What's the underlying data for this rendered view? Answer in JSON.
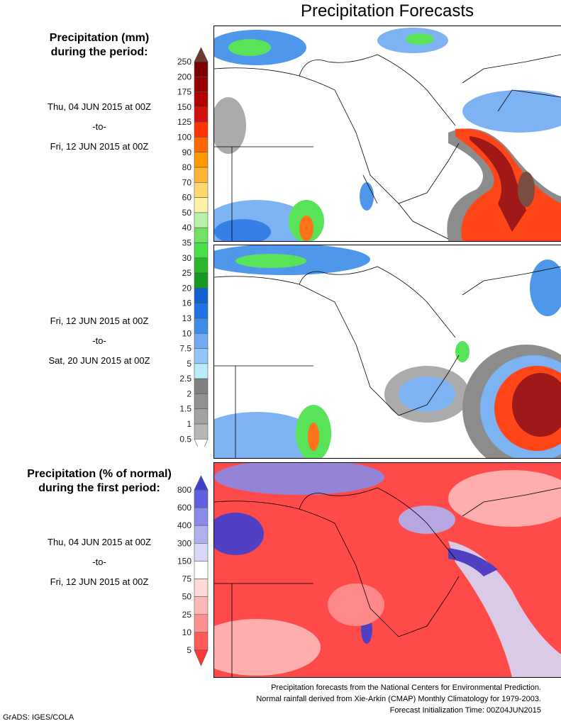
{
  "title": "Precipitation Forecasts",
  "panel1": {
    "header_line1": "Precipitation (mm)",
    "header_line2": "during the period:",
    "start": "Thu, 04 JUN 2015 at 00Z",
    "to": "-to-",
    "end": "Fri, 12 JUN 2015 at 00Z"
  },
  "panel2": {
    "start": "Fri, 12 JUN 2015 at 00Z",
    "to": "-to-",
    "end": "Sat, 20 JUN 2015 at 00Z"
  },
  "panel3": {
    "header_line1": "Precipitation (% of normal)",
    "header_line2": "during the first period:",
    "start": "Thu, 04 JUN 2015 at 00Z",
    "to": "-to-",
    "end": "Fri, 12 JUN 2015 at 00Z"
  },
  "precip_scale": {
    "labels": [
      "250",
      "200",
      "175",
      "150",
      "125",
      "100",
      "90",
      "80",
      "70",
      "60",
      "50",
      "40",
      "35",
      "30",
      "25",
      "20",
      "16",
      "13",
      "10",
      "7.5",
      "5",
      "2.5",
      "2",
      "1.5",
      "1",
      "0.5"
    ],
    "top_color": "#6b3a2c",
    "colors": [
      "#7a0000",
      "#960000",
      "#b00000",
      "#d21010",
      "#ff3300",
      "#ff6600",
      "#ff9900",
      "#ffb334",
      "#ffd96e",
      "#fff2a6",
      "#b8f2a8",
      "#72e262",
      "#48e048",
      "#2cb62c",
      "#129a22",
      "#1060d0",
      "#2172e2",
      "#3c8ce8",
      "#70aaf2",
      "#92c6f8",
      "#b8ecfc",
      "#808080",
      "#919191",
      "#a2a2a2",
      "#b6b6b6"
    ],
    "bottom_color": "#ffffff"
  },
  "pct_scale": {
    "labels": [
      "800",
      "600",
      "400",
      "300",
      "150",
      "75",
      "50",
      "25",
      "10",
      "5"
    ],
    "top_color": "#4040d0",
    "colors": [
      "#6060e0",
      "#8a8ae8",
      "#b0b0f0",
      "#d8d8f8",
      "#ffffff",
      "#ffd8d8",
      "#ffb8b8",
      "#ff9090",
      "#ff5a5a"
    ],
    "bottom_color": "#ff3838"
  },
  "footer": {
    "line1": "Precipitation forecasts from the National Centers for Environmental Prediction.",
    "line2": "Normal rainfall derived from Xie-Arkin (CMAP) Monthly Climatology for 1979-2003.",
    "line3": "Forecast Initialization Time: 00Z04JUN2015"
  },
  "credit": "GrADS: IGES/COLA"
}
